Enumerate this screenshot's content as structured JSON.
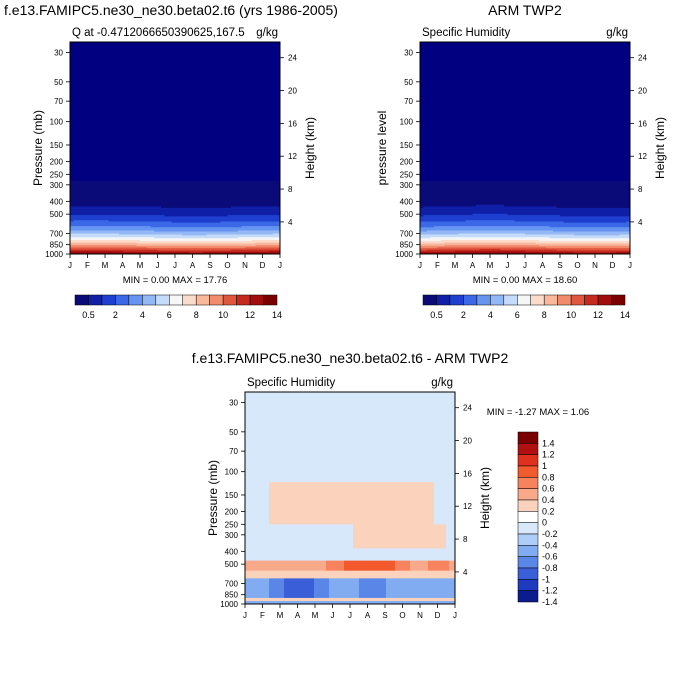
{
  "chart_data": [
    {
      "type": "heatmap",
      "title": "f.e13.FAMIPC5.ne30_ne30.beta02.t6 (yrs 1986-2005)",
      "left_label": "Q at -0.4712066650390625,167.5",
      "right_label": "g/kg",
      "ylabel": "Pressure (mb)",
      "ylabel_right": "Height (km)",
      "x": [
        "J",
        "F",
        "M",
        "A",
        "M",
        "J",
        "J",
        "A",
        "S",
        "O",
        "N",
        "D",
        "J"
      ],
      "y_pressure": [
        "30",
        "50",
        "70",
        "100",
        "150",
        "200",
        "250",
        "300",
        "400",
        "500",
        "700",
        "850",
        "1000"
      ],
      "y_height": [
        "24",
        "20",
        "16",
        "12",
        "8",
        "4"
      ],
      "ylim": [
        1000,
        25
      ],
      "minmax": "MIN =   0.00 MAX =  17.76",
      "colorbar": [
        "0.5",
        "2",
        "4",
        "6",
        "8",
        "10",
        "12",
        "14"
      ]
    },
    {
      "type": "heatmap",
      "title": "ARM TWP2",
      "left_label": "Specific Humidity",
      "right_label": "g/kg",
      "ylabel": "pressure level",
      "ylabel_right": "Height (km)",
      "x": [
        "J",
        "F",
        "M",
        "A",
        "M",
        "J",
        "J",
        "A",
        "S",
        "O",
        "N",
        "D",
        "J"
      ],
      "y_pressure": [
        "30",
        "50",
        "70",
        "100",
        "150",
        "200",
        "250",
        "300",
        "400",
        "500",
        "700",
        "850",
        "1000"
      ],
      "y_height": [
        "24",
        "20",
        "16",
        "12",
        "8",
        "4"
      ],
      "ylim": [
        1000,
        25
      ],
      "minmax": "MIN =   0.00 MAX =  18.60",
      "colorbar": [
        "0.5",
        "2",
        "4",
        "6",
        "8",
        "10",
        "12",
        "14"
      ]
    },
    {
      "type": "heatmap",
      "title": "f.e13.FAMIPC5.ne30_ne30.beta02.t6 - ARM TWP2",
      "left_label": "Specific Humidity",
      "right_label": "g/kg",
      "ylabel": "Pressure (mb)",
      "ylabel_right": "Height (km)",
      "x": [
        "J",
        "F",
        "M",
        "A",
        "M",
        "J",
        "J",
        "A",
        "S",
        "O",
        "N",
        "D",
        "J"
      ],
      "y_pressure": [
        "30",
        "50",
        "70",
        "100",
        "150",
        "200",
        "250",
        "300",
        "400",
        "500",
        "700",
        "850",
        "1000"
      ],
      "y_height": [
        "24",
        "20",
        "16",
        "12",
        "8",
        "4"
      ],
      "ylim": [
        1000,
        25
      ],
      "minmax": "MIN =  -1.27 MAX =   1.06",
      "colorbar": [
        "1.4",
        "1.2",
        "1",
        "0.8",
        "0.6",
        "0.4",
        "0.2",
        "0",
        "-0.2",
        "-0.4",
        "-0.6",
        "-0.8",
        "-1",
        "-1.2",
        "-1.4"
      ]
    }
  ],
  "colors": {
    "seq": [
      "#0a0a78",
      "#0f1fa6",
      "#1e3fcf",
      "#3a68e6",
      "#6595f0",
      "#94b8f5",
      "#c4dbf9",
      "#f6f6f6",
      "#fbdccb",
      "#f9b79c",
      "#f08c6b",
      "#e0573f",
      "#c62a1f",
      "#a10d0d",
      "#7a0000"
    ],
    "div": [
      "#7a0000",
      "#b01010",
      "#e0301e",
      "#f25a2e",
      "#f6825e",
      "#f8a98a",
      "#fbd3bd",
      "#ffffff",
      "#d7e8fb",
      "#aecdf7",
      "#82acf1",
      "#5a86e8",
      "#3a5fd8",
      "#1e3bc0",
      "#0c1c8f"
    ],
    "bg_deep": "#000080",
    "diff_bg": "#d7e8fb"
  }
}
